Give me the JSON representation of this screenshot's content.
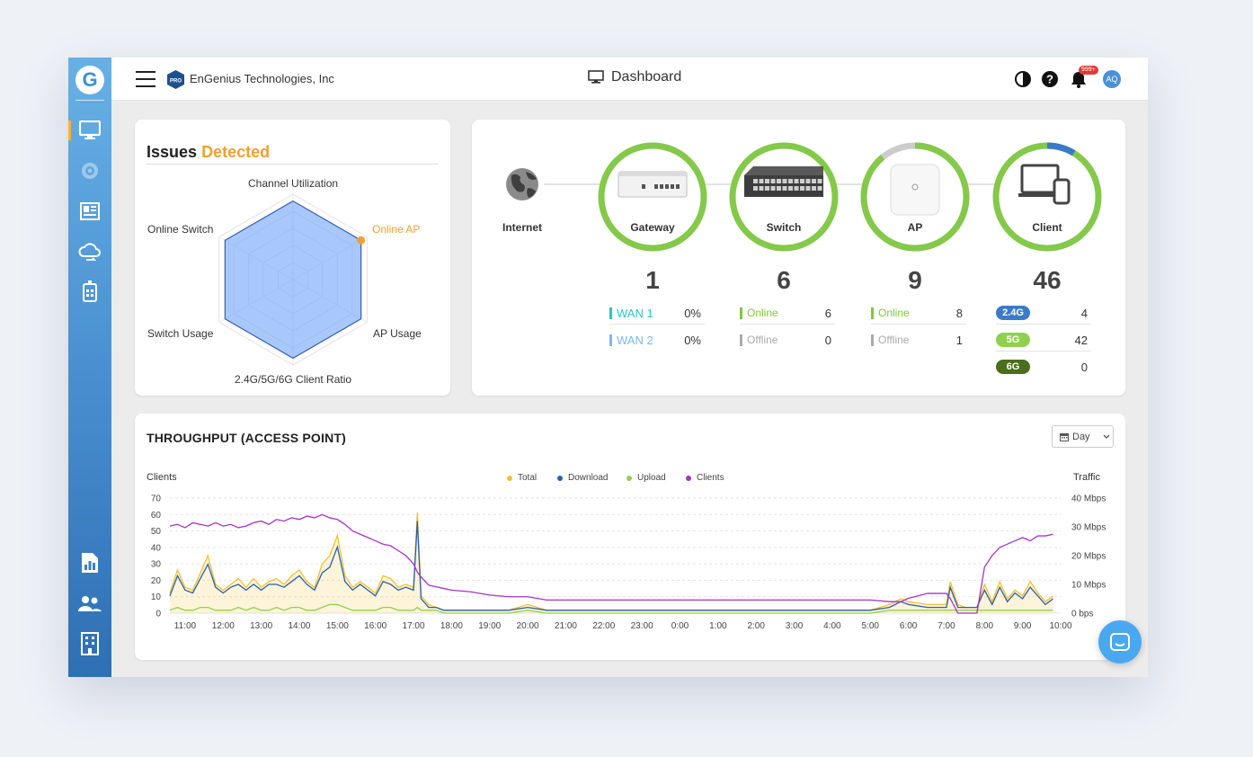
{
  "header": {
    "org_name": "EnGenius Technologies, Inc",
    "pro_badge": "PRO",
    "page_title": "Dashboard",
    "notifications_count": "999+",
    "avatar_initials": "AQ"
  },
  "sidebar": {
    "logo": "G",
    "items": [
      {
        "icon": "monitor-icon",
        "active": true
      },
      {
        "icon": "gear-icon",
        "active": false
      },
      {
        "icon": "newspaper-icon",
        "active": false
      },
      {
        "icon": "cloud-sync-icon",
        "active": false
      },
      {
        "icon": "firmware-icon",
        "active": false
      }
    ],
    "bottom_items": [
      {
        "icon": "report-icon"
      },
      {
        "icon": "users-icon"
      },
      {
        "icon": "building-icon"
      }
    ],
    "accent": "#f5b041"
  },
  "issues": {
    "title_prefix": "Issues",
    "title_accent": "Detected",
    "accent_color": "#f0a030",
    "axes": [
      {
        "label": "Channel Utilization",
        "value": 0.92,
        "alert": false
      },
      {
        "label": "Online AP",
        "value": 0.92,
        "alert": true
      },
      {
        "label": "AP Usage",
        "value": 0.92,
        "alert": false
      },
      {
        "label": "2.4G/5G/6G Client Ratio",
        "value": 0.92,
        "alert": false
      },
      {
        "label": "Switch Usage",
        "value": 0.92,
        "alert": false
      },
      {
        "label": "Online Switch",
        "value": 0.92,
        "alert": false
      }
    ]
  },
  "topology": {
    "internet_label": "Internet",
    "gateway": {
      "label": "Gateway",
      "count": "1",
      "rows": [
        {
          "label": "WAN 1",
          "value": "0%",
          "color": "#26c6c6"
        },
        {
          "label": "WAN 2",
          "value": "0%",
          "color": "#79b8f2"
        }
      ]
    },
    "switch": {
      "label": "Switch",
      "count": "6",
      "rows": [
        {
          "label": "Online",
          "value": "6",
          "color": "#7cc83d"
        },
        {
          "label": "Offline",
          "value": "0",
          "color": "#aaaaaa"
        }
      ]
    },
    "ap": {
      "label": "AP",
      "count": "9",
      "online_fraction": 0.89,
      "rows": [
        {
          "label": "Online",
          "value": "8",
          "color": "#7cc83d"
        },
        {
          "label": "Offline",
          "value": "1",
          "color": "#aaaaaa"
        }
      ]
    },
    "client": {
      "label": "Client",
      "count": "46",
      "rows": [
        {
          "label": "2.4G",
          "value": "4",
          "color": "#3a7bc8"
        },
        {
          "label": "5G",
          "value": "42",
          "color": "#8fd14f"
        },
        {
          "label": "6G",
          "value": "0",
          "color": "#4a6e1e"
        }
      ]
    },
    "ring_color": "#84c94a",
    "ring_offline_color": "#cccccc",
    "ring_24g_color": "#3a7bc8"
  },
  "throughput": {
    "title": "THROUGHPUT (ACCESS POINT)",
    "range_select": "Day",
    "left_axis_title": "Clients",
    "right_axis_title": "Traffic",
    "legend": [
      {
        "label": "Total",
        "color": "#f2c230"
      },
      {
        "label": "Download",
        "color": "#2c5fa8"
      },
      {
        "label": "Upload",
        "color": "#8fd14f"
      },
      {
        "label": "Clients",
        "color": "#a533c8"
      }
    ]
  },
  "chart_data": {
    "type": "line",
    "title": "THROUGHPUT (ACCESS POINT)",
    "xlabel": "",
    "ylabel": "Clients",
    "y2label": "Traffic",
    "ylim": [
      0,
      70
    ],
    "y_ticks": [
      "0",
      "10",
      "20",
      "30",
      "40",
      "50",
      "60",
      "70"
    ],
    "y2_ticks": [
      "0 bps",
      "10 Mbps",
      "20 Mbps",
      "30 Mbps",
      "40 Mbps"
    ],
    "x_ticks": [
      "11:00",
      "12:00",
      "13:00",
      "14:00",
      "15:00",
      "16:00",
      "17:00",
      "18:00",
      "19:00",
      "20:00",
      "21:00",
      "22:00",
      "23:00",
      "0:00",
      "1:00",
      "2:00",
      "3:00",
      "4:00",
      "5:00",
      "6:00",
      "7:00",
      "8:00",
      "9:00",
      "10:00"
    ],
    "legend_position": "top-center",
    "grid": true,
    "x": [
      10.6,
      10.8,
      11,
      11.2,
      11.4,
      11.6,
      11.8,
      12,
      12.2,
      12.4,
      12.6,
      12.8,
      13,
      13.2,
      13.4,
      13.6,
      13.8,
      14,
      14.2,
      14.4,
      14.6,
      14.8,
      15,
      15.2,
      15.4,
      15.6,
      15.8,
      16,
      16.2,
      16.4,
      16.6,
      16.8,
      17,
      17.1,
      17.2,
      17.4,
      17.6,
      17.8,
      18,
      18.5,
      19,
      19.5,
      20,
      20.5,
      21,
      22,
      23,
      24,
      25,
      26,
      27,
      28,
      29,
      29.5,
      29.8,
      30,
      30.5,
      31,
      31.1,
      31.3,
      31.5,
      31.8,
      32,
      32.2,
      32.4,
      32.6,
      32.8,
      33,
      33.2,
      33.4,
      33.6,
      33.8
    ],
    "series": [
      {
        "name": "Total",
        "axis": "right",
        "values": [
          7,
          15,
          9,
          8,
          14,
          20,
          10,
          8,
          10,
          12,
          9,
          12,
          9,
          11,
          12,
          10,
          13,
          15,
          11,
          9,
          17,
          20,
          27,
          13,
          9,
          11,
          9,
          7,
          13,
          12,
          9,
          10,
          9,
          35,
          6,
          3,
          2,
          1,
          1,
          1,
          1,
          1,
          3,
          1,
          1,
          1,
          1,
          1,
          1,
          1,
          1,
          1,
          1,
          3,
          5,
          4,
          3,
          3,
          11,
          3,
          2,
          2,
          10,
          4,
          11,
          5,
          8,
          6,
          11,
          7,
          4,
          6
        ]
      },
      {
        "name": "Download",
        "axis": "right",
        "values": [
          6,
          13,
          8,
          7,
          12,
          17,
          9,
          7,
          9,
          10,
          8,
          10,
          8,
          10,
          10,
          9,
          11,
          13,
          10,
          8,
          14,
          16,
          23,
          11,
          8,
          10,
          8,
          6,
          11,
          10,
          8,
          9,
          8,
          32,
          5,
          2,
          2,
          1,
          1,
          1,
          1,
          1,
          2,
          1,
          1,
          1,
          1,
          1,
          1,
          1,
          1,
          1,
          1,
          2,
          4,
          3,
          2,
          2,
          9,
          2,
          2,
          2,
          8,
          3,
          9,
          4,
          7,
          5,
          9,
          6,
          3,
          5
        ]
      },
      {
        "name": "Upload",
        "axis": "right",
        "values": [
          1,
          2,
          1,
          1,
          2,
          2,
          1,
          1,
          1,
          2,
          1,
          2,
          1,
          1,
          2,
          1,
          2,
          2,
          1,
          1,
          2,
          3,
          3,
          2,
          1,
          1,
          1,
          1,
          2,
          2,
          1,
          1,
          1,
          2,
          1,
          1,
          1,
          0,
          0,
          0,
          0,
          0,
          1,
          0,
          0,
          0,
          0,
          0,
          0,
          0,
          0,
          0,
          0,
          1,
          1,
          1,
          1,
          1,
          1,
          1,
          1,
          1,
          1,
          1,
          1,
          1,
          1,
          1,
          1,
          1,
          1,
          1
        ]
      },
      {
        "name": "Clients",
        "axis": "left",
        "values": [
          53,
          54,
          52,
          55,
          54,
          53,
          55,
          53,
          54,
          52,
          53,
          55,
          56,
          54,
          57,
          56,
          58,
          57,
          59,
          58,
          60,
          58,
          57,
          54,
          50,
          48,
          46,
          44,
          42,
          41,
          38,
          35,
          30,
          25,
          22,
          17,
          16,
          15,
          14,
          13,
          11,
          10,
          10,
          8,
          8,
          8,
          8,
          8,
          8,
          8,
          8,
          8,
          8,
          7,
          7,
          9,
          12,
          12,
          9,
          0,
          0,
          0,
          28,
          35,
          40,
          42,
          44,
          46,
          44,
          47,
          47,
          48
        ]
      }
    ]
  }
}
